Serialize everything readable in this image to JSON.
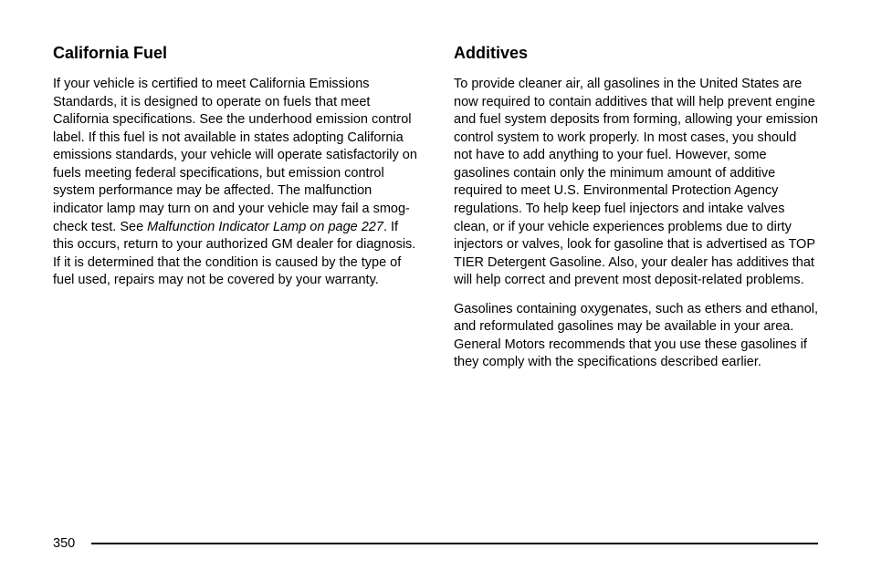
{
  "left_column": {
    "heading": "California Fuel",
    "paragraph_before_italic": "If your vehicle is certified to meet California Emissions Standards, it is designed to operate on fuels that meet California specifications. See the underhood emission control label. If this fuel is not available in states adopting California emissions standards, your vehicle will operate satisfactorily on fuels meeting federal specifications, but emission control system performance may be affected. The malfunction indicator lamp may turn on and your vehicle may fail a smog-check test. See ",
    "italic_text": "Malfunction Indicator Lamp on page 227",
    "paragraph_after_italic": ". If this occurs, return to your authorized GM dealer for diagnosis. If it is determined that the condition is caused by the type of fuel used, repairs may not be covered by your warranty."
  },
  "right_column": {
    "heading": "Additives",
    "paragraph1": "To provide cleaner air, all gasolines in the United States are now required to contain additives that will help prevent engine and fuel system deposits from forming, allowing your emission control system to work properly. In most cases, you should not have to add anything to your fuel. However, some gasolines contain only the minimum amount of additive required to meet U.S. Environmental Protection Agency regulations. To help keep fuel injectors and intake valves clean, or if your vehicle experiences problems due to dirty injectors or valves, look for gasoline that is advertised as TOP TIER Detergent Gasoline. Also, your dealer has additives that will help correct and prevent most deposit-related problems.",
    "paragraph2": "Gasolines containing oxygenates, such as ethers and ethanol, and reformulated gasolines may be available in your area. General Motors recommends that you use these gasolines if they comply with the specifications described earlier."
  },
  "page_number": "350"
}
